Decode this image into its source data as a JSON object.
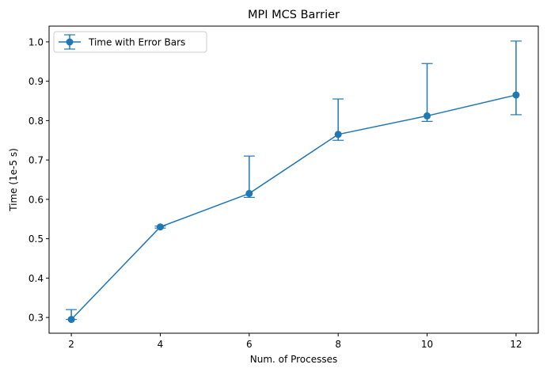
{
  "chart_data": {
    "type": "line",
    "title": "MPI MCS Barrier",
    "xlabel": "Num. of Processes",
    "ylabel": "Time (1e-5 s)",
    "x": [
      2,
      4,
      6,
      8,
      10,
      12
    ],
    "xticks": [
      "2",
      "4",
      "6",
      "8",
      "10",
      "12"
    ],
    "yticks": [
      "0.3",
      "0.4",
      "0.5",
      "0.6",
      "0.7",
      "0.8",
      "0.9",
      "1.0"
    ],
    "xlim": [
      1.5,
      12.5
    ],
    "ylim": [
      0.26,
      1.04
    ],
    "grid": false,
    "legend_position": "top-left",
    "series": [
      {
        "name": "Time with Error Bars",
        "color": "#1f77b4",
        "marker": "circle",
        "values": [
          0.295,
          0.53,
          0.615,
          0.765,
          0.812,
          0.865
        ],
        "error_lower": [
          0.295,
          0.527,
          0.605,
          0.75,
          0.798,
          0.815
        ],
        "error_upper": [
          0.32,
          0.532,
          0.71,
          0.855,
          0.945,
          1.002
        ]
      }
    ]
  }
}
